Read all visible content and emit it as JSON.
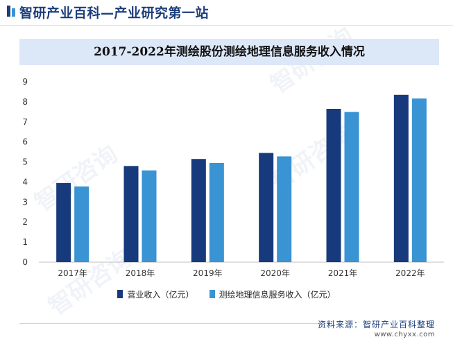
{
  "header": {
    "title": "智研产业百科—产业研究第一站"
  },
  "watermark": {
    "text": "智研咨询"
  },
  "chart_data": {
    "type": "bar",
    "title": "2017-2022年测绘股份测绘地理信息服务收入情况",
    "categories": [
      "2017年",
      "2018年",
      "2019年",
      "2020年",
      "2021年",
      "2022年"
    ],
    "ylim": [
      0,
      9
    ],
    "yticks": [
      "0",
      "1",
      "2",
      "3",
      "4",
      "5",
      "6",
      "7",
      "8",
      "9"
    ],
    "grid": false,
    "legend_position": "bottom",
    "series": [
      {
        "name": "营业收入（亿元）",
        "color": "#173a7d",
        "values": [
          3.95,
          4.8,
          5.15,
          5.45,
          7.65,
          8.35
        ]
      },
      {
        "name": "测绘地理信息服务收入（亿元）",
        "color": "#3a93d3",
        "values": [
          3.78,
          4.58,
          4.95,
          5.28,
          7.5,
          8.17
        ]
      }
    ]
  },
  "footer": {
    "source": "资料来源：智研产业百科整理",
    "url": "www.chyxx.com"
  }
}
